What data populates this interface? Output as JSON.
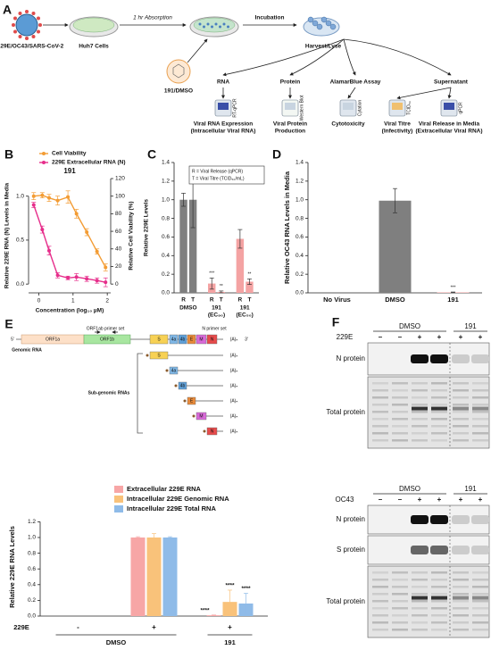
{
  "panel_a": {
    "label": "A",
    "virus": "229E/OC43/SARS-CoV-2",
    "cells": "Huh7 Cells",
    "absorption": "1 hr Absorption",
    "treatment": "191/DMSO",
    "incubation": "Incubation",
    "harvest": "Harvest/Lyse",
    "branches": [
      "RNA",
      "Protein",
      "AlamarBlue Assay",
      "Supernatant"
    ],
    "results": [
      {
        "instrument": "RT-qPCR",
        "lines": [
          "Viral RNA Expression",
          "(Intracellular Viral RNA)"
        ]
      },
      {
        "instrument": "Western Blot",
        "lines": [
          "Viral Protein",
          "Production"
        ]
      },
      {
        "instrument": "Cytation",
        "lines": [
          "Cytotoxicity"
        ]
      },
      {
        "instrument": "TCID₅₀",
        "lines": [
          "Viral Titre",
          "(Infectivity)"
        ]
      },
      {
        "instrument": "qPCR",
        "lines": [
          "Viral Release in Media",
          "(Extracellular Viral RNA)"
        ]
      }
    ]
  },
  "chart_data": [
    {
      "panel": "B",
      "type": "line",
      "title": "191",
      "x": [
        -0.15,
        0.1,
        0.3,
        0.55,
        0.85,
        1.1,
        1.4,
        1.7,
        1.95
      ],
      "series": [
        {
          "name": "Cell Viability",
          "color": "#f39c34",
          "axis": "y2",
          "values": [
            100,
            101,
            98,
            95,
            99,
            80,
            59,
            37,
            19
          ],
          "errors": [
            4,
            3,
            4,
            5,
            7,
            5,
            4,
            3,
            4
          ]
        },
        {
          "name": "229E Extracellular RNA (N)",
          "color": "#e62e8b",
          "values": [
            0.9,
            0.62,
            0.38,
            0.1,
            0.07,
            0.08,
            0.06,
            0.04,
            0.02
          ],
          "errors": [
            0.03,
            0.04,
            0.05,
            0.03,
            0.02,
            0.04,
            0.03,
            0.03,
            0.05
          ]
        }
      ],
      "xlabel": "Concentration (log₁₀ µM)",
      "ylabel": "Relative 229E RNA (N) Levels in Media",
      "y2label": "Relative Cell Viability (%)",
      "xlim": [
        -0.3,
        2.1
      ],
      "xticks": [
        0,
        1,
        2
      ],
      "ylim": [
        -0.1,
        1.2
      ],
      "yticks": [
        {
          "value": 0,
          "label": "0.0"
        },
        {
          "value": 0.5,
          "label": "0.5"
        },
        {
          "value": 1,
          "label": "1.0"
        }
      ],
      "y2lim": [
        -10,
        120
      ],
      "y2ticks": [
        0,
        20,
        40,
        60,
        80,
        100,
        120
      ],
      "legend": "upper left"
    },
    {
      "panel": "C",
      "type": "bar",
      "categories": [
        "R",
        "T",
        "R",
        "T",
        "R",
        "T"
      ],
      "groups": [
        [
          "DMSO"
        ],
        [
          "191",
          "(EC₉₀)"
        ],
        [
          "191",
          "(EC₅₀)"
        ]
      ],
      "values": [
        1.0,
        1.0,
        0.1,
        0.01,
        0.58,
        0.12
      ],
      "errors": [
        0.07,
        0.3,
        0.06,
        0.01,
        0.1,
        0.03
      ],
      "colors": [
        "#7f7f7f",
        "#7f7f7f",
        "#f4a3a3",
        "#f4a3a3",
        "#f4a3a3",
        "#f4a3a3"
      ],
      "significance": [
        null,
        null,
        "***",
        "**",
        null,
        "**"
      ],
      "note": [
        "R = Viral Release (qPCR)",
        "T = Viral Titre (TCID₅₀/mL)"
      ],
      "ylabel": "Relative 229E Levels",
      "ylim": [
        0,
        1.4
      ],
      "yticks": [
        {
          "value": 0,
          "label": "0.0"
        },
        {
          "value": 0.2,
          "label": "0.2"
        },
        {
          "value": 0.4,
          "label": "0.4"
        },
        {
          "value": 0.6,
          "label": "0.6"
        },
        {
          "value": 0.8,
          "label": "0.8"
        },
        {
          "value": 1,
          "label": "1.0"
        },
        {
          "value": 1.2,
          "label": "1.2"
        },
        {
          "value": 1.4,
          "label": "1.4"
        }
      ]
    },
    {
      "panel": "D",
      "type": "bar",
      "categories": [
        "No Virus",
        "DMSO",
        "191"
      ],
      "values": [
        0,
        0.99,
        0.005
      ],
      "errors": [
        0,
        0.13,
        0.004
      ],
      "colors": [
        "#7f7f7f",
        "#7f7f7f",
        "#f4a3a3"
      ],
      "significance": [
        null,
        null,
        "***"
      ],
      "ylabel": "Relative OC43 RNA Levels in Media",
      "ylim": [
        0,
        1.4
      ],
      "yticks": [
        {
          "value": 0,
          "label": "0.0"
        },
        {
          "value": 0.2,
          "label": "0.2"
        },
        {
          "value": 0.4,
          "label": "0.4"
        },
        {
          "value": 0.6,
          "label": "0.6"
        },
        {
          "value": 0.8,
          "label": "0.8"
        },
        {
          "value": 1,
          "label": "1.0"
        },
        {
          "value": 1.2,
          "label": "1.2"
        },
        {
          "value": 1.4,
          "label": "1.4"
        }
      ]
    },
    {
      "panel": "E",
      "type": "bar",
      "categories": [
        "-",
        "+",
        "+"
      ],
      "groups": [
        "DMSO",
        "191"
      ],
      "xlabel": "229E",
      "series": [
        {
          "name": "Extracellular 229E RNA",
          "color": "#f7a6a6",
          "values": [
            0,
            1.0,
            0.01
          ],
          "errors": [
            0,
            0.01,
            0.004
          ],
          "significance": [
            null,
            null,
            "****"
          ]
        },
        {
          "name": "Intracellular 229E Genomic RNA",
          "color": "#f9c27a",
          "values": [
            0,
            1.0,
            0.18
          ],
          "errors": [
            0,
            0.05,
            0.15
          ],
          "significance": [
            null,
            null,
            "****"
          ]
        },
        {
          "name": "Intracellular 229E Total RNA",
          "color": "#8fbbe8",
          "values": [
            0,
            1.0,
            0.16
          ],
          "errors": [
            0,
            0.01,
            0.13
          ],
          "significance": [
            null,
            null,
            "****"
          ]
        }
      ],
      "ylabel": "Relative 229E RNA Levels",
      "ylim": [
        0,
        1.25
      ],
      "yticks": [
        {
          "value": 0,
          "label": "0.0"
        },
        {
          "value": 0.2,
          "label": "0.2"
        },
        {
          "value": 0.4,
          "label": "0.4"
        },
        {
          "value": 0.6,
          "label": "0.6"
        },
        {
          "value": 0.8,
          "label": "0.8"
        },
        {
          "value": 1,
          "label": "1.0"
        },
        {
          "value": 1.2,
          "label": "1.2"
        }
      ],
      "legend": "upper left"
    }
  ],
  "panel_e_diagram": {
    "label": "E",
    "five": "5'",
    "three": "3'",
    "genomic": "Genomic RNA",
    "subgenomic": "Sub-genomic RNAs",
    "orf1a": "ORF1a",
    "orf1b": "ORF1b",
    "primer_orf": "ORF1ab primer set",
    "primer_n": "N primer set",
    "poly_a": "(A)ₙ",
    "genes": [
      "S",
      "4a",
      "4b",
      "E",
      "M",
      "N"
    ]
  },
  "panel_f": {
    "label": "F",
    "blots": [
      {
        "treatment": "229E",
        "groups": [
          "DMSO",
          "191"
        ],
        "lanes": [
          "–",
          "–",
          "+",
          "+",
          "+",
          "+"
        ],
        "rows": [
          "N protein",
          "Total protein"
        ]
      },
      {
        "treatment": "OC43",
        "groups": [
          "DMSO",
          "191"
        ],
        "lanes": [
          "–",
          "–",
          "+",
          "+",
          "+",
          "+"
        ],
        "rows": [
          "N protein",
          "S protein",
          "Total protein"
        ]
      }
    ]
  }
}
